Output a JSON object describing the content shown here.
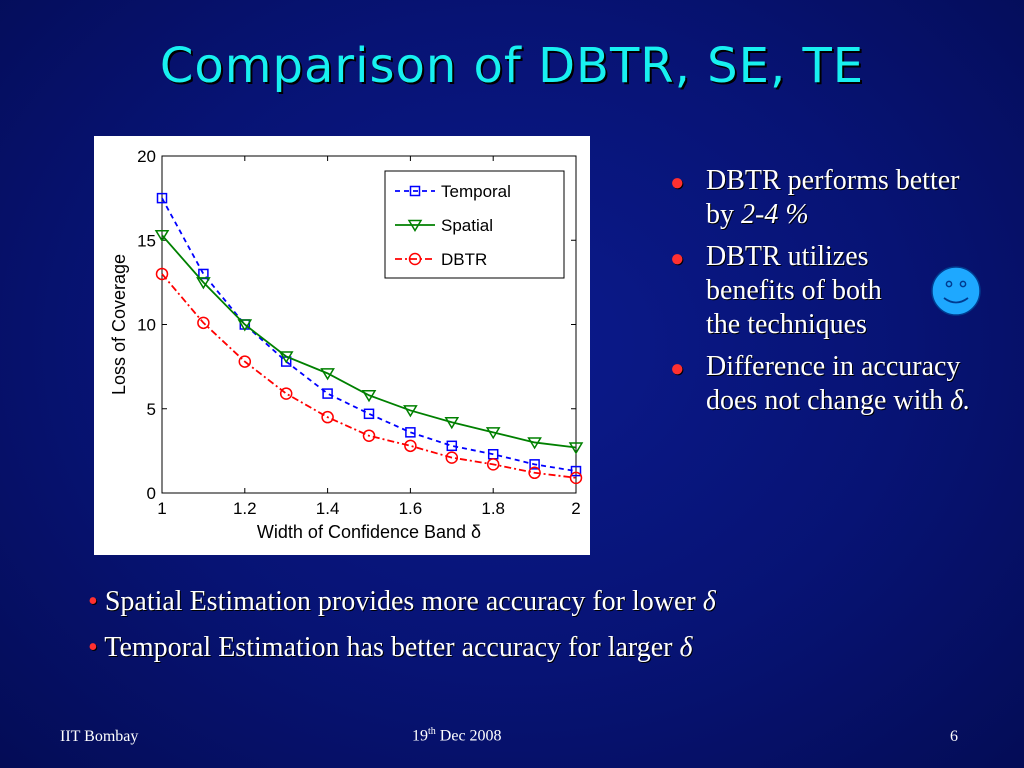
{
  "slide": {
    "title": "Comparison of DBTR, SE, TE",
    "bullets": [
      {
        "text": "DBTR performs better by ",
        "em": "2-4 %"
      },
      {
        "text": "DBTR utilizes benefits of both the techniques",
        "em": ""
      },
      {
        "text": "Difference in accuracy does not change with ",
        "em": "δ."
      }
    ],
    "bottom_lines": [
      {
        "mark": "•",
        "text": " Spatial Estimation  provides more accuracy for lower ",
        "em": "δ"
      },
      {
        "mark": "•",
        "text": " Temporal Estimation has better accuracy for larger ",
        "em": "δ"
      }
    ],
    "footer": {
      "left": "IIT Bombay",
      "date_day": "19",
      "date_sup": "th",
      "date_rest": " Dec  2008",
      "page": "6"
    },
    "smiley_icon": "smiley-face-icon"
  },
  "chart_data": {
    "type": "line",
    "xlabel": "Width of Confidence Band δ",
    "ylabel": "Loss of Coverage",
    "xlim": [
      1,
      2
    ],
    "ylim": [
      0,
      20
    ],
    "xticks": [
      "1",
      "1.2",
      "1.4",
      "1.6",
      "1.8",
      "2"
    ],
    "yticks": [
      "0",
      "5",
      "10",
      "15",
      "20"
    ],
    "grid": false,
    "legend_position": "top-right",
    "x": [
      1.0,
      1.1,
      1.2,
      1.3,
      1.4,
      1.5,
      1.6,
      1.7,
      1.8,
      1.9,
      2.0
    ],
    "series": [
      {
        "name": "Temporal",
        "color": "#0000ff",
        "marker": "square",
        "dash": "5,4",
        "values": [
          17.5,
          13.0,
          10.0,
          7.8,
          5.9,
          4.7,
          3.6,
          2.8,
          2.3,
          1.7,
          1.3
        ]
      },
      {
        "name": "Spatial",
        "color": "#008000",
        "marker": "triangle-down",
        "dash": "",
        "values": [
          15.3,
          12.5,
          10.0,
          8.1,
          7.1,
          5.8,
          4.9,
          4.2,
          3.6,
          3.0,
          2.7
        ]
      },
      {
        "name": "DBTR",
        "color": "#ff0000",
        "marker": "circle",
        "dash": "7,3,2,3",
        "values": [
          13.0,
          10.1,
          7.8,
          5.9,
          4.5,
          3.4,
          2.8,
          2.1,
          1.7,
          1.2,
          0.9
        ]
      }
    ]
  }
}
